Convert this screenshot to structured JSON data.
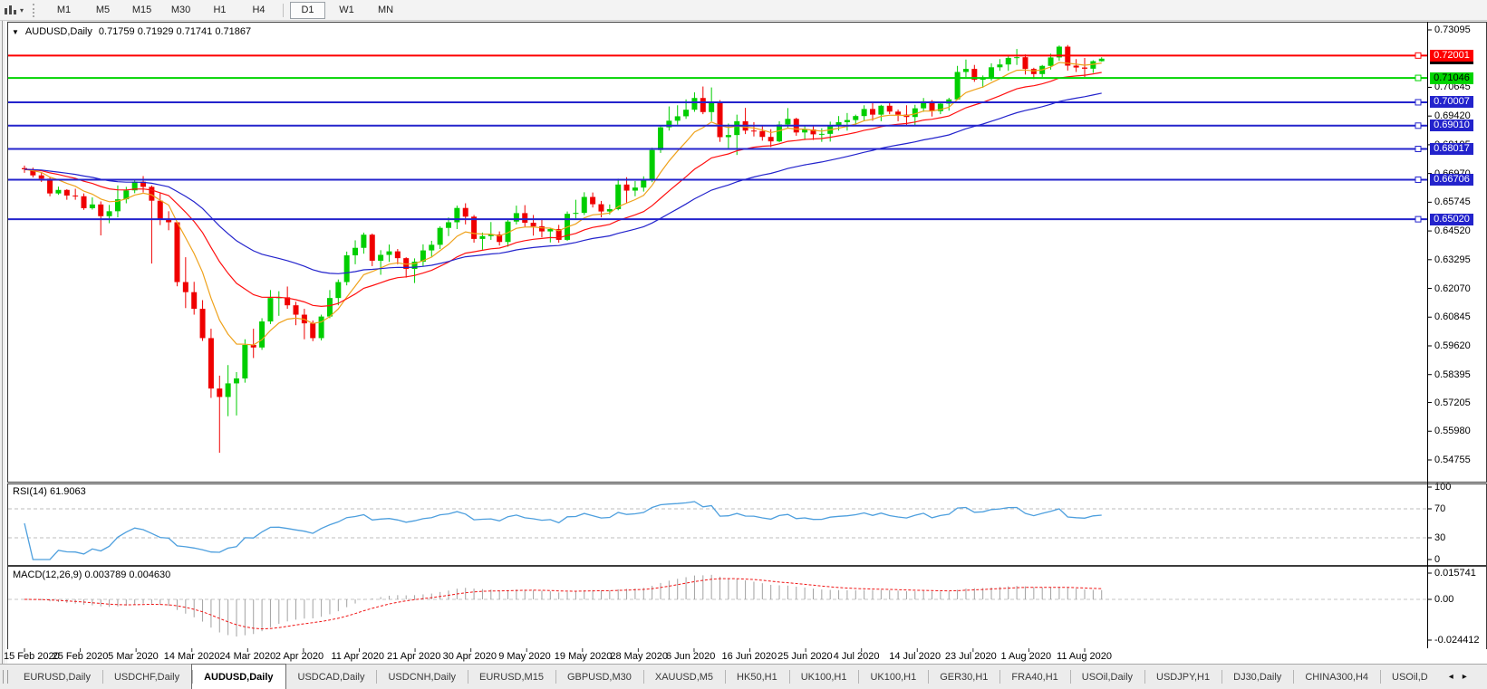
{
  "toolbar": {
    "icon_name": "charts-toolbar-icon",
    "caret": "▾",
    "timeframes": [
      "M1",
      "M5",
      "M15",
      "M30",
      "H1",
      "H4",
      "D1",
      "W1",
      "MN"
    ],
    "separator_after_index": 5,
    "active": "D1"
  },
  "chart_data": {
    "type": "candlestick",
    "symbol": "AUDUSD",
    "timeframe": "Daily",
    "title": {
      "caret": "▼",
      "symbol": "AUDUSD,Daily",
      "ohlc": "0.71759 0.71929 0.71741 0.71867"
    },
    "current_bar": {
      "open": 0.71759,
      "high": 0.71929,
      "low": 0.71741,
      "close": 0.71867
    },
    "colors": {
      "up": "#00ce00",
      "down": "#ef0000"
    },
    "price_axis_ticks": [
      "0.73095",
      "0.70645",
      "0.69420",
      "0.68195",
      "0.66970",
      "0.65745",
      "0.64520",
      "0.63295",
      "0.62070",
      "0.60845",
      "0.59620",
      "0.58395",
      "0.57205",
      "0.55980",
      "0.54755"
    ],
    "levels": [
      {
        "price": 0.72001,
        "label": "0.72001",
        "color": "#fe0000",
        "text_color": "#ffffff"
      },
      {
        "price": 0.71046,
        "label": "0.71046",
        "color": "#00d400",
        "text_color": "#000000"
      },
      {
        "price": 0.70007,
        "label": "0.70007",
        "color": "#2323cc",
        "text_color": "#ffffff"
      },
      {
        "price": 0.6901,
        "label": "0.69010",
        "color": "#2323cc",
        "text_color": "#ffffff"
      },
      {
        "price": 0.68017,
        "label": "0.68017",
        "color": "#2323cc",
        "text_color": "#ffffff"
      },
      {
        "price": 0.66706,
        "label": "0.66706",
        "color": "#2323cc",
        "text_color": "#ffffff"
      },
      {
        "price": 0.6502,
        "label": "0.65020",
        "color": "#2323cc",
        "text_color": "#ffffff"
      }
    ],
    "current_price": {
      "price": 0.71867,
      "label": "0.71867",
      "color": "#000000",
      "text_color": "#ffffff"
    },
    "date_ticks": [
      "15 Feb 2020",
      "25 Feb 2020",
      "5 Mar 2020",
      "14 Mar 2020",
      "24 Mar 2020",
      "2 Apr 2020",
      "11 Apr 2020",
      "21 Apr 2020",
      "30 Apr 2020",
      "9 May 2020",
      "19 May 2020",
      "28 May 2020",
      "6 Jun 2020",
      "16 Jun 2020",
      "25 Jun 2020",
      "4 Jul 2020",
      "14 Jul 2020",
      "23 Jul 2020",
      "1 Aug 2020",
      "11 Aug 2020"
    ],
    "moving_averages": [
      {
        "name": "fast-ma",
        "period": 8,
        "color": "#efa21b"
      },
      {
        "name": "mid-ma",
        "period": 20,
        "color": "#ff1010"
      },
      {
        "name": "slow-ma",
        "period": 40,
        "color": "#2323cc"
      }
    ],
    "candles": [
      [
        0.672,
        0.6731,
        0.67,
        0.6715
      ],
      [
        0.6715,
        0.6722,
        0.668,
        0.6689
      ],
      [
        0.6689,
        0.67,
        0.6661,
        0.6675
      ],
      [
        0.6675,
        0.668,
        0.66,
        0.6612
      ],
      [
        0.6612,
        0.6641,
        0.6606,
        0.6627
      ],
      [
        0.6627,
        0.663,
        0.6585,
        0.6603
      ],
      [
        0.6603,
        0.6632,
        0.6585,
        0.66
      ],
      [
        0.66,
        0.6612,
        0.6542,
        0.6549
      ],
      [
        0.6549,
        0.6595,
        0.6543,
        0.6565
      ],
      [
        0.6565,
        0.6578,
        0.6433,
        0.6515
      ],
      [
        0.6515,
        0.6563,
        0.6485,
        0.6536
      ],
      [
        0.6536,
        0.6646,
        0.651,
        0.6587
      ],
      [
        0.6587,
        0.664,
        0.657,
        0.6625
      ],
      [
        0.6625,
        0.667,
        0.6613,
        0.6662
      ],
      [
        0.6662,
        0.6686,
        0.6616,
        0.664
      ],
      [
        0.664,
        0.6646,
        0.6313,
        0.6581
      ],
      [
        0.6581,
        0.6616,
        0.6477,
        0.6504
      ],
      [
        0.6504,
        0.6536,
        0.6455,
        0.6489
      ],
      [
        0.6489,
        0.649,
        0.6216,
        0.6234
      ],
      [
        0.6234,
        0.634,
        0.6123,
        0.6191
      ],
      [
        0.6191,
        0.6235,
        0.6095,
        0.612
      ],
      [
        0.612,
        0.6157,
        0.5983,
        0.5995
      ],
      [
        0.5995,
        0.6035,
        0.574,
        0.578
      ],
      [
        0.578,
        0.5835,
        0.5506,
        0.5744
      ],
      [
        0.5744,
        0.588,
        0.5662,
        0.5802
      ],
      [
        0.5802,
        0.585,
        0.5665,
        0.5823
      ],
      [
        0.5823,
        0.599,
        0.5805,
        0.5966
      ],
      [
        0.5966,
        0.6035,
        0.591,
        0.5955
      ],
      [
        0.5955,
        0.608,
        0.5945,
        0.6066
      ],
      [
        0.6066,
        0.62,
        0.6055,
        0.6166
      ],
      [
        0.6166,
        0.6195,
        0.609,
        0.6169
      ],
      [
        0.6169,
        0.6215,
        0.612,
        0.6135
      ],
      [
        0.6135,
        0.615,
        0.605,
        0.6095
      ],
      [
        0.6095,
        0.612,
        0.599,
        0.6058
      ],
      [
        0.6058,
        0.607,
        0.5982,
        0.5995
      ],
      [
        0.5995,
        0.6095,
        0.5985,
        0.6087
      ],
      [
        0.6087,
        0.62,
        0.608,
        0.6166
      ],
      [
        0.6166,
        0.6245,
        0.6135,
        0.6234
      ],
      [
        0.6234,
        0.6364,
        0.622,
        0.6348
      ],
      [
        0.6348,
        0.6412,
        0.631,
        0.638
      ],
      [
        0.638,
        0.6445,
        0.6355,
        0.6436
      ],
      [
        0.6436,
        0.6441,
        0.6302,
        0.6325
      ],
      [
        0.6325,
        0.637,
        0.6265,
        0.635
      ],
      [
        0.635,
        0.6394,
        0.632,
        0.6365
      ],
      [
        0.6365,
        0.6375,
        0.631,
        0.6336
      ],
      [
        0.6336,
        0.634,
        0.6253,
        0.629
      ],
      [
        0.629,
        0.6335,
        0.623,
        0.6321
      ],
      [
        0.6321,
        0.6395,
        0.63,
        0.6369
      ],
      [
        0.6369,
        0.641,
        0.634,
        0.6393
      ],
      [
        0.6393,
        0.6472,
        0.6375,
        0.6465
      ],
      [
        0.6465,
        0.651,
        0.643,
        0.6489
      ],
      [
        0.6489,
        0.656,
        0.646,
        0.655
      ],
      [
        0.655,
        0.657,
        0.648,
        0.6513
      ],
      [
        0.6513,
        0.652,
        0.6402,
        0.6418
      ],
      [
        0.6418,
        0.6445,
        0.6372,
        0.643
      ],
      [
        0.643,
        0.649,
        0.6414,
        0.6437
      ],
      [
        0.6437,
        0.645,
        0.639,
        0.6405
      ],
      [
        0.6405,
        0.65,
        0.6385,
        0.6492
      ],
      [
        0.6492,
        0.656,
        0.648,
        0.6528
      ],
      [
        0.6528,
        0.6562,
        0.647,
        0.6487
      ],
      [
        0.6487,
        0.652,
        0.6432,
        0.6472
      ],
      [
        0.6472,
        0.6505,
        0.6425,
        0.645
      ],
      [
        0.645,
        0.6465,
        0.6403,
        0.646
      ],
      [
        0.646,
        0.6478,
        0.6402,
        0.6414
      ],
      [
        0.6414,
        0.6535,
        0.641,
        0.6525
      ],
      [
        0.6525,
        0.6585,
        0.6505,
        0.6529
      ],
      [
        0.6529,
        0.6617,
        0.652,
        0.6597
      ],
      [
        0.6597,
        0.6616,
        0.6552,
        0.6566
      ],
      [
        0.6566,
        0.658,
        0.651,
        0.6535
      ],
      [
        0.6535,
        0.6565,
        0.6522,
        0.6545
      ],
      [
        0.6545,
        0.6675,
        0.654,
        0.665
      ],
      [
        0.665,
        0.6681,
        0.6572,
        0.6624
      ],
      [
        0.6624,
        0.6665,
        0.66,
        0.6637
      ],
      [
        0.6637,
        0.6685,
        0.662,
        0.6667
      ],
      [
        0.6667,
        0.6807,
        0.666,
        0.6797
      ],
      [
        0.6797,
        0.6899,
        0.6785,
        0.6894
      ],
      [
        0.6894,
        0.6983,
        0.688,
        0.6922
      ],
      [
        0.6922,
        0.6988,
        0.6905,
        0.6941
      ],
      [
        0.6941,
        0.7013,
        0.693,
        0.6969
      ],
      [
        0.6969,
        0.7043,
        0.696,
        0.7019
      ],
      [
        0.7019,
        0.7068,
        0.695,
        0.6959
      ],
      [
        0.6959,
        0.7064,
        0.692,
        0.7
      ],
      [
        0.7,
        0.701,
        0.6832,
        0.6852
      ],
      [
        0.6852,
        0.691,
        0.68,
        0.6861
      ],
      [
        0.6861,
        0.6948,
        0.6776,
        0.692
      ],
      [
        0.692,
        0.6977,
        0.6865,
        0.688
      ],
      [
        0.688,
        0.6916,
        0.6855,
        0.6878
      ],
      [
        0.6878,
        0.69,
        0.6837,
        0.6853
      ],
      [
        0.6853,
        0.6886,
        0.681,
        0.6834
      ],
      [
        0.6834,
        0.692,
        0.683,
        0.6906
      ],
      [
        0.6906,
        0.6976,
        0.689,
        0.693
      ],
      [
        0.693,
        0.6935,
        0.6858,
        0.6872
      ],
      [
        0.6872,
        0.69,
        0.6843,
        0.6885
      ],
      [
        0.6885,
        0.6898,
        0.684,
        0.6864
      ],
      [
        0.6864,
        0.689,
        0.6832,
        0.6866
      ],
      [
        0.6866,
        0.6918,
        0.6833,
        0.6902
      ],
      [
        0.6902,
        0.6942,
        0.688,
        0.6916
      ],
      [
        0.6916,
        0.6955,
        0.688,
        0.6925
      ],
      [
        0.6925,
        0.6948,
        0.6905,
        0.6942
      ],
      [
        0.6942,
        0.6988,
        0.692,
        0.6972
      ],
      [
        0.6972,
        0.6998,
        0.6922,
        0.6948
      ],
      [
        0.6948,
        0.699,
        0.692,
        0.6986
      ],
      [
        0.6986,
        0.7001,
        0.695,
        0.6961
      ],
      [
        0.6961,
        0.697,
        0.692,
        0.6948
      ],
      [
        0.6948,
        0.6988,
        0.69,
        0.6938
      ],
      [
        0.6938,
        0.699,
        0.6903,
        0.6975
      ],
      [
        0.6975,
        0.7019,
        0.696,
        0.7005
      ],
      [
        0.7005,
        0.701,
        0.694,
        0.6963
      ],
      [
        0.6963,
        0.7003,
        0.695,
        0.6995
      ],
      [
        0.6995,
        0.702,
        0.6965,
        0.7013
      ],
      [
        0.7013,
        0.7156,
        0.701,
        0.713
      ],
      [
        0.713,
        0.7183,
        0.7108,
        0.7143
      ],
      [
        0.7143,
        0.716,
        0.7088,
        0.7097
      ],
      [
        0.7097,
        0.7115,
        0.7063,
        0.7106
      ],
      [
        0.7106,
        0.7167,
        0.7093,
        0.715
      ],
      [
        0.715,
        0.7185,
        0.7135,
        0.7162
      ],
      [
        0.7162,
        0.7198,
        0.7135,
        0.719
      ],
      [
        0.719,
        0.7228,
        0.716,
        0.7193
      ],
      [
        0.7193,
        0.7205,
        0.7119,
        0.7143
      ],
      [
        0.7143,
        0.7148,
        0.71,
        0.7121
      ],
      [
        0.7121,
        0.716,
        0.7108,
        0.7156
      ],
      [
        0.7156,
        0.7208,
        0.714,
        0.7192
      ],
      [
        0.7192,
        0.7243,
        0.7178,
        0.7238
      ],
      [
        0.7238,
        0.7245,
        0.7136,
        0.7157
      ],
      [
        0.7157,
        0.7185,
        0.713,
        0.7149
      ],
      [
        0.7149,
        0.719,
        0.7108,
        0.7144
      ],
      [
        0.7144,
        0.718,
        0.7126,
        0.7176
      ],
      [
        0.71759,
        0.71929,
        0.71741,
        0.71867
      ]
    ],
    "rsi": {
      "label": "RSI(14) 61.9063",
      "period": 14,
      "current_value": "61.9063",
      "line_color": "#4d9fde",
      "level_lines": [
        70,
        30
      ],
      "axis_ticks": [
        "100",
        "70",
        "30",
        "0"
      ]
    },
    "macd": {
      "label": "MACD(12,26,9) 0.003789 0.004630",
      "fast": 12,
      "slow": 26,
      "signal": 9,
      "current_macd": "0.003789",
      "current_signal": "0.004630",
      "histogram_color": "#a2a2a2",
      "signal_color": "#f01414",
      "axis_ticks": [
        "0.015741",
        "0.00",
        "-0.024412"
      ]
    }
  },
  "tab_bar": {
    "tabs": [
      "EURUSD,Daily",
      "USDCHF,Daily",
      "AUDUSD,Daily",
      "USDCAD,Daily",
      "USDCNH,Daily",
      "EURUSD,M15",
      "GBPUSD,M30",
      "XAUUSD,M5",
      "HK50,H1",
      "UK100,H1",
      "UK100,H1",
      "GER30,H1",
      "FRA40,H1",
      "USOil,Daily",
      "USDJPY,H1",
      "DJ30,Daily",
      "CHINA300,H4",
      "USOil,D"
    ],
    "active_index": 2,
    "scroll_left": "◂",
    "scroll_right": "▸"
  }
}
